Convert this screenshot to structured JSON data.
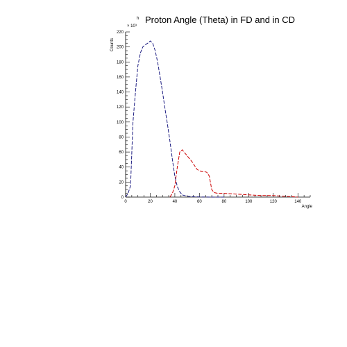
{
  "chart_data": {
    "type": "line",
    "title": "Proton Angle (Theta) in FD and in CD",
    "title_prefix": "h",
    "xlabel": "Angle",
    "ylabel": "Counts",
    "y_multiplier": "× 10³",
    "xlim": [
      0,
      150
    ],
    "ylim": [
      0,
      220
    ],
    "xticks": [
      0,
      20,
      40,
      60,
      80,
      100,
      120,
      140
    ],
    "yticks": [
      0,
      20,
      40,
      60,
      80,
      100,
      120,
      140,
      160,
      180,
      200,
      220
    ],
    "grid": false,
    "series": [
      {
        "color": "#1a1a80",
        "dashed": true,
        "x": [
          0,
          2,
          4,
          6,
          8,
          10,
          12,
          14,
          16,
          18,
          20,
          22,
          24,
          26,
          28,
          30,
          32,
          34,
          36,
          38,
          40,
          42,
          44,
          46,
          48,
          50,
          55,
          60,
          70,
          80
        ],
        "y": [
          0,
          5,
          15,
          100,
          140,
          175,
          192,
          200,
          203,
          205,
          208,
          205,
          195,
          180,
          160,
          140,
          118,
          97,
          75,
          50,
          28,
          14,
          7,
          3,
          2,
          1,
          0.5,
          0.2,
          0,
          0
        ]
      },
      {
        "color": "#cc0000",
        "dashed": true,
        "x": [
          36,
          38,
          40,
          42,
          44,
          46,
          48,
          50,
          52,
          54,
          56,
          58,
          60,
          62,
          64,
          66,
          68,
          70,
          72,
          75,
          80,
          90,
          100,
          110,
          120,
          130,
          140
        ],
        "y": [
          0,
          5,
          15,
          40,
          60,
          63,
          59,
          55,
          51,
          47,
          42,
          37,
          35,
          34,
          34,
          33,
          28,
          10,
          6,
          5,
          5,
          4,
          3,
          2,
          2,
          1,
          0
        ]
      }
    ]
  }
}
